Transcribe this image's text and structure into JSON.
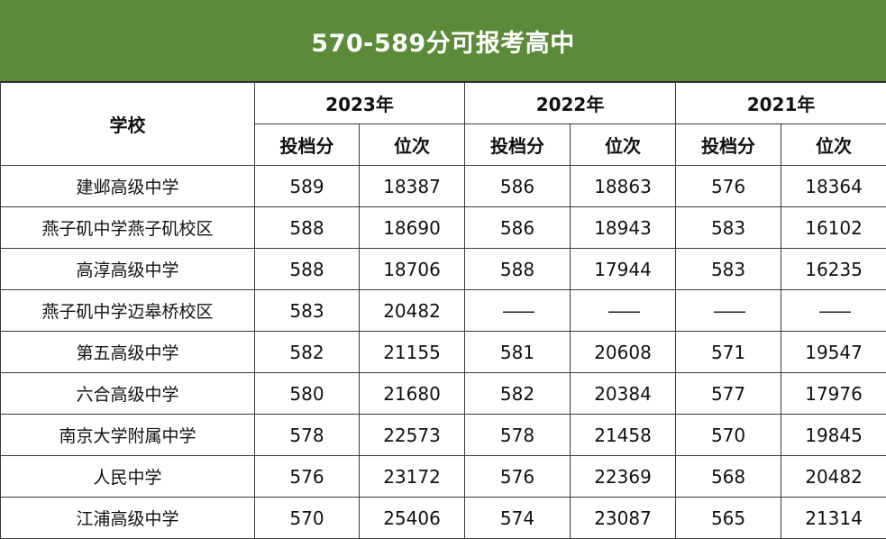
{
  "title": "570-589分可报考高中",
  "colors": {
    "banner": "#5b8a38",
    "banner_text": "#ffffff",
    "border": "#3a3a3a"
  },
  "header": {
    "school": "学校",
    "years": [
      "2023年",
      "2022年",
      "2021年"
    ],
    "sub": [
      "投档分",
      "位次",
      "投档分",
      "位次",
      "投档分",
      "位次"
    ]
  },
  "rows": [
    [
      "建邺高级中学",
      "589",
      "18387",
      "586",
      "18863",
      "576",
      "18364"
    ],
    [
      "燕子矶中学燕子矶校区",
      "588",
      "18690",
      "586",
      "18943",
      "583",
      "16102"
    ],
    [
      "高淳高级中学",
      "588",
      "18706",
      "588",
      "17944",
      "583",
      "16235"
    ],
    [
      "燕子矶中学迈皋桥校区",
      "583",
      "20482",
      "——",
      "——",
      "——",
      "——"
    ],
    [
      "第五高级中学",
      "582",
      "21155",
      "581",
      "20608",
      "571",
      "19547"
    ],
    [
      "六合高级中学",
      "580",
      "21680",
      "582",
      "20384",
      "577",
      "17976"
    ],
    [
      "南京大学附属中学",
      "578",
      "22573",
      "578",
      "21458",
      "570",
      "19845"
    ],
    [
      "人民中学",
      "576",
      "23172",
      "576",
      "22369",
      "568",
      "20482"
    ],
    [
      "江浦高级中学",
      "570",
      "25406",
      "574",
      "23087",
      "565",
      "21314"
    ]
  ]
}
